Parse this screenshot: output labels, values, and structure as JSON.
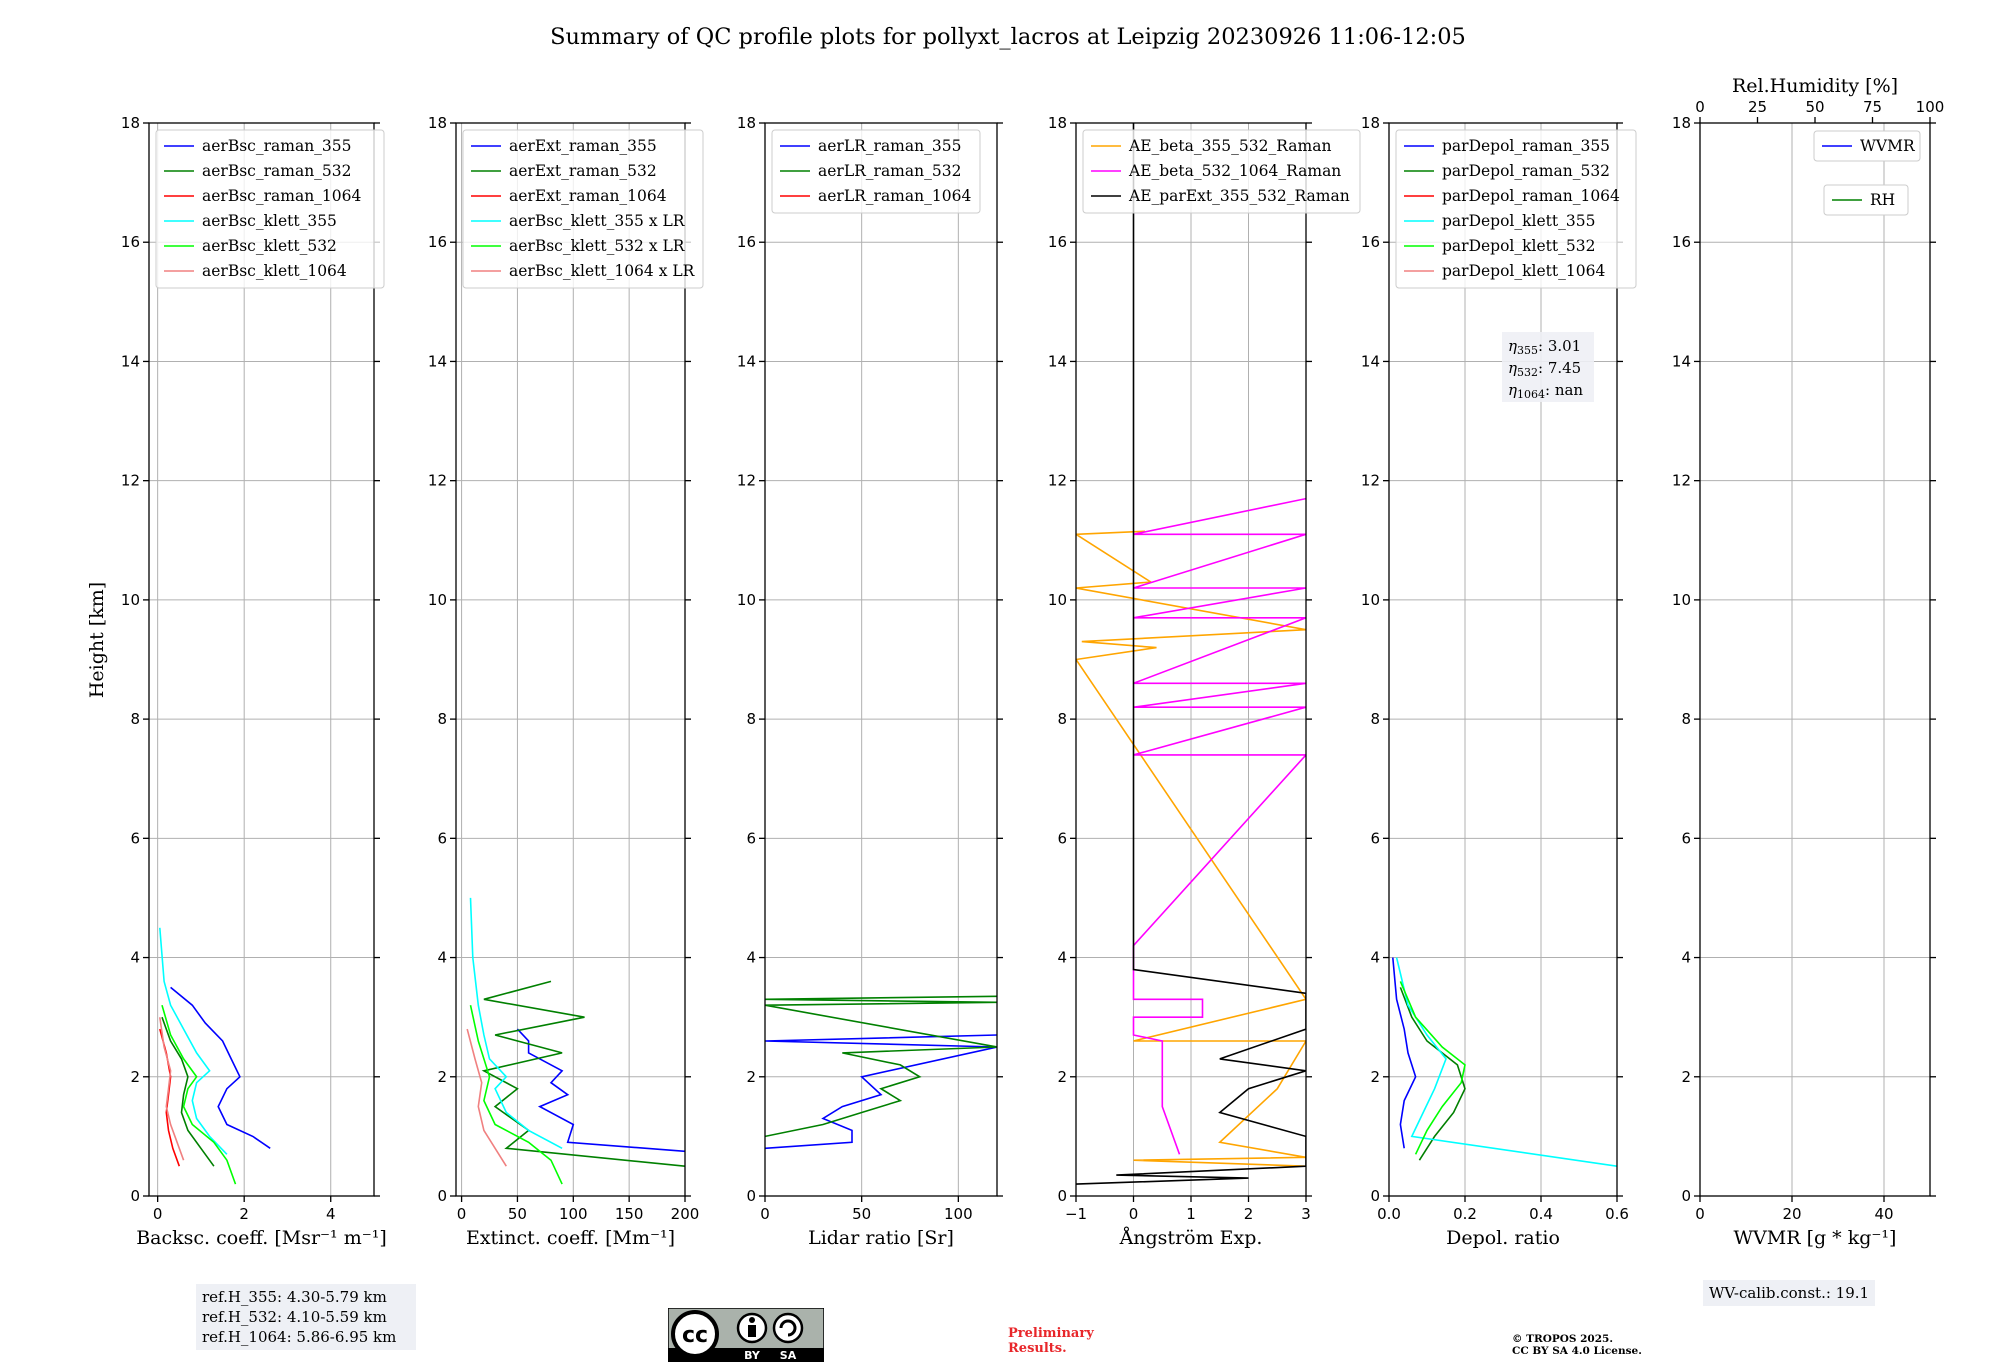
{
  "title": "Summary of QC profile plots for pollyxt_lacros at Leipzig 20230926 11:06-12:05",
  "ylabel": "Height [km]",
  "panels": [
    {
      "id": "bsc",
      "xlabel": "Backsc. coeff. [Msr⁻¹ m⁻¹]",
      "xlim": [
        -0.2,
        5
      ],
      "xticks": [
        0,
        2,
        4
      ],
      "legend": [
        "aerBsc_raman_355",
        "aerBsc_raman_532",
        "aerBsc_raman_1064",
        "aerBsc_klett_355",
        "aerBsc_klett_532",
        "aerBsc_klett_1064"
      ],
      "colors": [
        "#0000ff",
        "#008000",
        "#ff0000",
        "#00ffff",
        "#00ff00",
        "#f08080"
      ]
    },
    {
      "id": "ext",
      "xlabel": "Extinct. coeff. [Mm⁻¹]",
      "xlim": [
        -5,
        200
      ],
      "xticks": [
        0,
        50,
        100,
        150,
        200
      ],
      "legend": [
        "aerExt_raman_355",
        "aerExt_raman_532",
        "aerExt_raman_1064",
        "aerBsc_klett_355 x LR",
        "aerBsc_klett_532 x LR",
        "aerBsc_klett_1064 x LR"
      ],
      "colors": [
        "#0000ff",
        "#008000",
        "#ff0000",
        "#00ffff",
        "#00ff00",
        "#f08080"
      ]
    },
    {
      "id": "lr",
      "xlabel": "Lidar ratio [Sr]",
      "xlim": [
        0,
        120
      ],
      "xticks": [
        0,
        50,
        100
      ],
      "legend": [
        "aerLR_raman_355",
        "aerLR_raman_532",
        "aerLR_raman_1064"
      ],
      "colors": [
        "#0000ff",
        "#008000",
        "#ff0000"
      ]
    },
    {
      "id": "ae",
      "xlabel": "Ångström Exp.",
      "xlim": [
        -1,
        3
      ],
      "xticks": [
        -1,
        0,
        1,
        2,
        3
      ],
      "legend": [
        "AE_beta_355_532_Raman",
        "AE_beta_532_1064_Raman",
        "AE_parExt_355_532_Raman"
      ],
      "colors": [
        "#ffa500",
        "#ff00ff",
        "#000000"
      ]
    },
    {
      "id": "dep",
      "xlabel": "Depol. ratio",
      "xlim": [
        0,
        0.6
      ],
      "xticks": [
        0.0,
        0.2,
        0.4,
        0.6
      ],
      "xtick_labels": [
        "0.0",
        "0.2",
        "0.4",
        "0.6"
      ],
      "legend": [
        "parDepol_raman_355",
        "parDepol_raman_532",
        "parDepol_raman_1064",
        "parDepol_klett_355",
        "parDepol_klett_532",
        "parDepol_klett_1064"
      ],
      "colors": [
        "#0000ff",
        "#008000",
        "#ff0000",
        "#00ffff",
        "#00ff00",
        "#f08080"
      ]
    },
    {
      "id": "wv",
      "xlabel": "WVMR [g * kg⁻¹]",
      "xlim": [
        0,
        50
      ],
      "xticks": [
        0,
        20,
        40
      ],
      "top_label": "Rel.Humidity [%]",
      "top_xlim": [
        0,
        100
      ],
      "top_xticks": [
        0,
        25,
        50,
        75,
        100
      ],
      "legend": [
        "WVMR",
        "RH"
      ],
      "colors": [
        "#0000ff",
        "#008000"
      ]
    }
  ],
  "chart_data": {
    "type": "line",
    "title": "Summary of QC profile plots for pollyxt_lacros at Leipzig 20230926 11:06-12:05",
    "ylabel": "Height [km]",
    "ylim": [
      0,
      18
    ],
    "yticks": [
      0,
      2,
      4,
      6,
      8,
      10,
      12,
      14,
      16,
      18
    ],
    "grid": true,
    "subplots": [
      {
        "id": "bsc",
        "series": [
          {
            "name": "aerBsc_raman_355",
            "x": [
              2.6,
              2.2,
              1.6,
              1.4,
              1.6,
              1.9,
              1.7,
              1.5,
              1.1,
              0.8,
              0.3
            ],
            "y": [
              0.8,
              1.0,
              1.2,
              1.5,
              1.8,
              2.0,
              2.3,
              2.6,
              2.9,
              3.2,
              3.5
            ]
          },
          {
            "name": "aerBsc_raman_532",
            "x": [
              1.3,
              1.0,
              0.7,
              0.55,
              0.6,
              0.7,
              0.55,
              0.3,
              0.1
            ],
            "y": [
              0.5,
              0.8,
              1.1,
              1.4,
              1.7,
              2.0,
              2.3,
              2.6,
              3.0
            ]
          },
          {
            "name": "aerBsc_raman_1064",
            "x": [
              0.5,
              0.35,
              0.25,
              0.2,
              0.25,
              0.3,
              0.2,
              0.05
            ],
            "y": [
              0.5,
              0.8,
              1.1,
              1.4,
              1.7,
              2.0,
              2.4,
              2.8
            ]
          },
          {
            "name": "aerBsc_klett_355",
            "x": [
              1.6,
              1.2,
              0.9,
              0.8,
              0.9,
              1.2,
              0.9,
              0.6,
              0.3,
              0.15,
              0.05
            ],
            "y": [
              0.7,
              1.0,
              1.3,
              1.6,
              1.9,
              2.1,
              2.4,
              2.8,
              3.2,
              3.6,
              4.5
            ]
          },
          {
            "name": "aerBsc_klett_532",
            "x": [
              1.8,
              1.6,
              1.3,
              0.8,
              0.6,
              0.7,
              0.9,
              0.6,
              0.3,
              0.1
            ],
            "y": [
              0.2,
              0.6,
              0.9,
              1.2,
              1.5,
              1.8,
              2.0,
              2.3,
              2.7,
              3.2
            ]
          },
          {
            "name": "aerBsc_klett_1064",
            "x": [
              0.6,
              0.45,
              0.3,
              0.2,
              0.25,
              0.3,
              0.15,
              0.05
            ],
            "y": [
              0.6,
              0.9,
              1.2,
              1.5,
              1.8,
              2.1,
              2.5,
              3.0
            ]
          }
        ]
      },
      {
        "id": "ext",
        "series": [
          {
            "name": "aerExt_raman_355",
            "x": [
              200,
              95,
              100,
              70,
              95,
              80,
              90,
              60,
              60,
              50
            ],
            "y": [
              0.75,
              0.9,
              1.2,
              1.5,
              1.7,
              1.9,
              2.1,
              2.4,
              2.6,
              2.8
            ]
          },
          {
            "name": "aerExt_raman_532",
            "x": [
              200,
              40,
              60,
              30,
              50,
              20,
              90,
              30,
              110,
              20,
              80
            ],
            "y": [
              0.5,
              0.8,
              1.1,
              1.5,
              1.8,
              2.1,
              2.4,
              2.7,
              3.0,
              3.3,
              3.6
            ]
          },
          {
            "name": "aerBsc_klett_355 x LR",
            "x": [
              90,
              60,
              40,
              30,
              40,
              25,
              20,
              15,
              10,
              8
            ],
            "y": [
              0.8,
              1.1,
              1.4,
              1.8,
              2.0,
              2.3,
              2.7,
              3.2,
              4.0,
              5.0
            ]
          },
          {
            "name": "aerBsc_klett_532 x LR",
            "x": [
              90,
              80,
              60,
              30,
              20,
              25,
              15,
              8
            ],
            "y": [
              0.2,
              0.6,
              0.9,
              1.2,
              1.6,
              2.0,
              2.6,
              3.2
            ]
          },
          {
            "name": "aerBsc_klett_1064 x LR",
            "x": [
              40,
              30,
              20,
              15,
              18,
              12,
              5
            ],
            "y": [
              0.5,
              0.8,
              1.1,
              1.5,
              1.9,
              2.3,
              2.8
            ]
          }
        ]
      },
      {
        "id": "lr",
        "series": [
          {
            "name": "aerLR_raman_355",
            "x": [
              0,
              45,
              45,
              30,
              40,
              60,
              50,
              120,
              0,
              120
            ],
            "y": [
              0.8,
              0.9,
              1.1,
              1.3,
              1.5,
              1.7,
              2.0,
              2.5,
              2.6,
              2.7
            ]
          },
          {
            "name": "aerLR_raman_532",
            "x": [
              0,
              30,
              50,
              70,
              60,
              80,
              70,
              40,
              120,
              0,
              120,
              0,
              120
            ],
            "y": [
              1.0,
              1.2,
              1.4,
              1.6,
              1.8,
              2.0,
              2.2,
              2.4,
              2.5,
              3.2,
              3.25,
              3.3,
              3.35
            ]
          }
        ]
      },
      {
        "id": "ae",
        "series": [
          {
            "name": "AE_beta_355_532_Raman",
            "x": [
              3,
              0.0,
              3,
              1.5,
              2.5,
              3,
              0.0,
              3,
              -1,
              0.4,
              -0.9,
              3,
              -1,
              0.3,
              -1,
              0.2
            ],
            "y": [
              0.5,
              0.6,
              0.65,
              0.9,
              1.8,
              2.6,
              2.6,
              3.3,
              9.0,
              9.2,
              9.3,
              9.5,
              10.2,
              10.3,
              11.1,
              11.15
            ]
          },
          {
            "name": "AE_beta_532_1064_Raman",
            "x": [
              0.8,
              0.5,
              0.5,
              0,
              0,
              1.2,
              1.2,
              0,
              0,
              3,
              0,
              3,
              0,
              3,
              0,
              3,
              0,
              3,
              0,
              3,
              0,
              3
            ],
            "y": [
              0.7,
              1.5,
              2.6,
              2.7,
              3.0,
              3.0,
              3.3,
              3.3,
              4.2,
              7.4,
              7.4,
              8.2,
              8.2,
              8.6,
              8.6,
              9.7,
              9.7,
              10.2,
              10.2,
              11.1,
              11.1,
              11.7
            ]
          },
          {
            "name": "AE_parExt_355_532_Raman",
            "x": [
              -1,
              2,
              -0.3,
              3,
              3,
              1.5,
              2.0,
              3,
              1.5,
              3,
              3,
              0,
              0
            ],
            "y": [
              0.2,
              0.3,
              0.35,
              0.5,
              1.0,
              1.4,
              1.8,
              2.1,
              2.3,
              2.8,
              3.4,
              3.8,
              18
            ]
          }
        ]
      },
      {
        "id": "dep",
        "series": [
          {
            "name": "parDepol_raman_355",
            "x": [
              0.04,
              0.03,
              0.04,
              0.07,
              0.05,
              0.04,
              0.02,
              0.01
            ],
            "y": [
              0.8,
              1.2,
              1.6,
              2.0,
              2.4,
              2.8,
              3.3,
              4.0
            ]
          },
          {
            "name": "parDepol_raman_532",
            "x": [
              0.08,
              0.12,
              0.17,
              0.2,
              0.18,
              0.1,
              0.06,
              0.03
            ],
            "y": [
              0.6,
              1.0,
              1.4,
              1.8,
              2.2,
              2.6,
              3.0,
              3.5
            ]
          },
          {
            "name": "parDepol_klett_355",
            "x": [
              0.6,
              0.06,
              0.09,
              0.12,
              0.15,
              0.1,
              0.05,
              0.02
            ],
            "y": [
              0.5,
              1.0,
              1.4,
              1.8,
              2.3,
              2.7,
              3.2,
              4.0
            ]
          },
          {
            "name": "parDepol_klett_532",
            "x": [
              0.07,
              0.1,
              0.14,
              0.19,
              0.2,
              0.14,
              0.07,
              0.03
            ],
            "y": [
              0.7,
              1.1,
              1.5,
              1.9,
              2.2,
              2.5,
              3.0,
              3.6
            ]
          }
        ]
      },
      {
        "id": "wv",
        "series": []
      }
    ]
  },
  "eta_box": [
    {
      "sym": "η",
      "sub": "355",
      "value": ": 3.01"
    },
    {
      "sym": "η",
      "sub": "532",
      "value": ": 7.45"
    },
    {
      "sym": "η",
      "sub": "1064",
      "value": ": nan"
    }
  ],
  "refH": [
    "ref.H_355: 4.30-5.79 km",
    "ref.H_532: 4.10-5.59 km",
    "ref.H_1064: 5.86-6.95 km"
  ],
  "wv_calib": "WV-calib.const.: 19.1",
  "cc_logo": {
    "cc": "cc",
    "by": "BY",
    "sa": "SA"
  },
  "preliminary": [
    "Preliminary",
    "Results."
  ],
  "copyright": [
    "© TROPOS 2025.",
    "CC BY SA 4.0 License."
  ]
}
